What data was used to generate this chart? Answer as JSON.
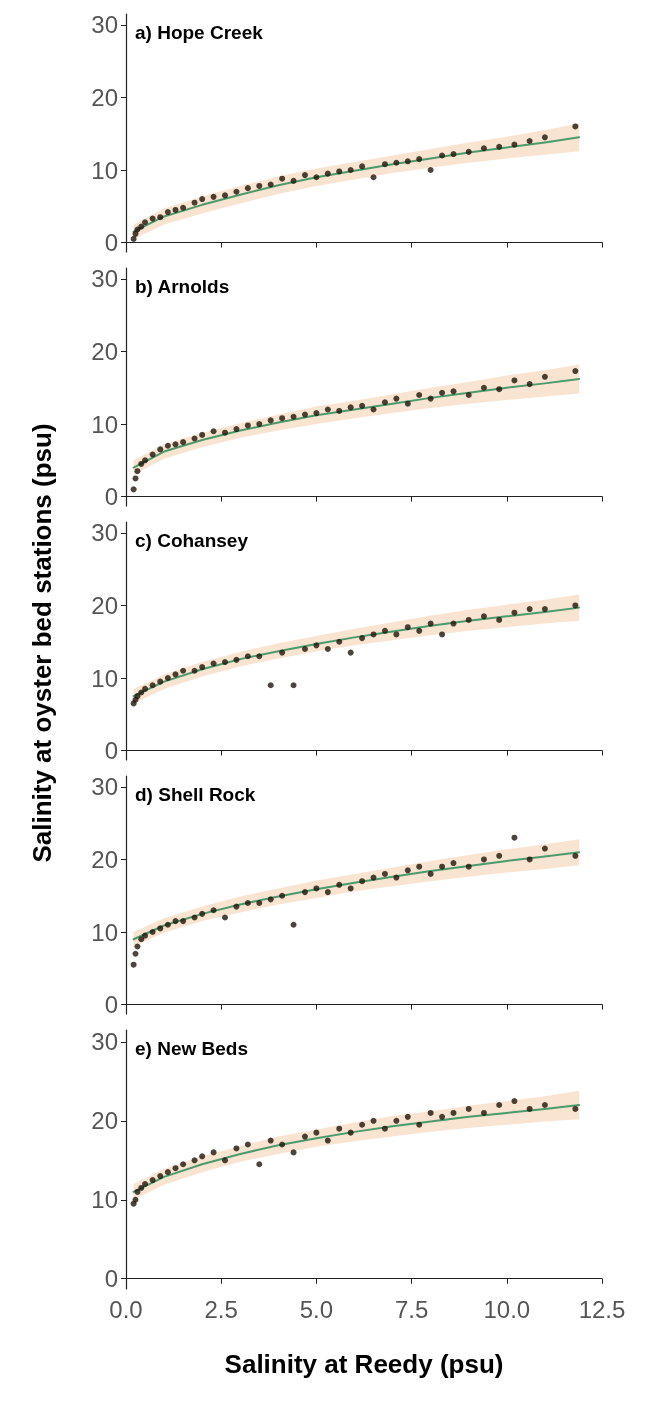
{
  "chart_data": [
    {
      "type": "scatter",
      "title": "a) Hope Creek",
      "xlim": [
        0,
        12.5
      ],
      "xticks": [
        0,
        2.5,
        5,
        7.5,
        10,
        12.5
      ],
      "ylim": [
        -1.3,
        31.5
      ],
      "yticks": [
        0,
        10,
        20,
        30
      ],
      "tick_labels": "y",
      "series": [
        {
          "type": "scatter",
          "marker": "circle",
          "color": "#1f1409",
          "x": [
            0.2,
            0.25,
            0.3,
            0.4,
            0.5,
            0.7,
            0.9,
            1.1,
            1.3,
            1.5,
            1.8,
            2.0,
            2.3,
            2.6,
            2.9,
            3.2,
            3.5,
            3.8,
            4.1,
            4.4,
            4.7,
            5.0,
            5.3,
            5.6,
            5.9,
            6.2,
            6.5,
            6.8,
            7.1,
            7.4,
            7.7,
            8.0,
            8.3,
            8.6,
            9.0,
            9.4,
            9.8,
            10.2,
            10.6,
            11.0,
            11.8
          ],
          "values": [
            0.5,
            1.2,
            1.8,
            2.2,
            2.8,
            3.3,
            3.5,
            4.2,
            4.5,
            4.8,
            5.5,
            6.0,
            6.3,
            6.5,
            7.0,
            7.5,
            7.8,
            8.0,
            8.8,
            8.5,
            9.3,
            9.0,
            9.5,
            9.8,
            10.0,
            10.5,
            9.0,
            10.8,
            11.0,
            11.2,
            11.5,
            10.0,
            12.0,
            12.2,
            12.5,
            13.0,
            13.2,
            13.5,
            14.0,
            14.5,
            16.0
          ]
        },
        {
          "type": "line",
          "marker": "none",
          "color": "#4c9a6c",
          "x": [
            0.2,
            1,
            2,
            3,
            4,
            5,
            6,
            7,
            8,
            9,
            10,
            11,
            11.9
          ],
          "values": [
            1.5,
            3.6,
            5.2,
            6.6,
            7.9,
            9.0,
            9.9,
            10.8,
            11.6,
            12.4,
            13.1,
            13.8,
            14.5
          ],
          "lower": [
            0.5,
            2.5,
            4.0,
            5.4,
            6.7,
            7.8,
            8.7,
            9.6,
            10.3,
            11.0,
            11.6,
            12.1,
            12.6
          ],
          "upper": [
            2.5,
            4.7,
            6.4,
            7.8,
            9.1,
            10.2,
            11.1,
            12.0,
            12.9,
            13.8,
            14.6,
            15.5,
            16.4
          ]
        }
      ]
    },
    {
      "type": "scatter",
      "title": "b) Arnolds",
      "xlim": [
        0,
        12.5
      ],
      "xticks": [
        0,
        2.5,
        5,
        7.5,
        10,
        12.5
      ],
      "ylim": [
        -1.3,
        31.5
      ],
      "yticks": [
        0,
        10,
        20,
        30
      ],
      "tick_labels": "y",
      "series": [
        {
          "type": "scatter",
          "marker": "circle",
          "color": "#1f1409",
          "x": [
            0.2,
            0.25,
            0.3,
            0.4,
            0.5,
            0.7,
            0.9,
            1.1,
            1.3,
            1.5,
            1.8,
            2.0,
            2.3,
            2.6,
            2.9,
            3.2,
            3.5,
            3.8,
            4.1,
            4.4,
            4.7,
            5.0,
            5.3,
            5.6,
            5.9,
            6.2,
            6.5,
            6.8,
            7.1,
            7.4,
            7.7,
            8.0,
            8.3,
            8.6,
            9.0,
            9.4,
            9.8,
            10.2,
            10.6,
            11.0,
            11.8
          ],
          "values": [
            1.0,
            2.5,
            3.5,
            4.5,
            5.0,
            5.8,
            6.5,
            7.0,
            7.2,
            7.5,
            8.0,
            8.5,
            9.0,
            8.8,
            9.3,
            9.8,
            10.0,
            10.5,
            10.8,
            11.0,
            11.3,
            11.5,
            12.0,
            11.8,
            12.3,
            12.5,
            12.0,
            13.0,
            13.5,
            12.8,
            14.0,
            13.5,
            14.3,
            14.5,
            14.0,
            15.0,
            14.8,
            16.0,
            15.5,
            16.5,
            17.3
          ]
        },
        {
          "type": "line",
          "marker": "none",
          "color": "#4c9a6c",
          "x": [
            0.2,
            1,
            2,
            3,
            4,
            5,
            6,
            7,
            8,
            9,
            10,
            11,
            11.9
          ],
          "values": [
            4.0,
            6.2,
            7.8,
            9.1,
            10.2,
            11.2,
            12.0,
            12.8,
            13.6,
            14.3,
            15.0,
            15.6,
            16.2
          ],
          "lower": [
            3.0,
            5.2,
            6.8,
            8.1,
            9.1,
            10.0,
            10.8,
            11.5,
            12.2,
            12.8,
            13.3,
            13.8,
            14.2
          ],
          "upper": [
            5.0,
            7.2,
            8.8,
            10.1,
            11.3,
            12.4,
            13.2,
            14.1,
            15.0,
            15.8,
            16.7,
            17.4,
            18.2
          ]
        }
      ]
    },
    {
      "type": "scatter",
      "title": "c) Cohansey",
      "ylabel": "Salinity at oyster bed stations (psu)",
      "xlim": [
        0,
        12.5
      ],
      "xticks": [
        0,
        2.5,
        5,
        7.5,
        10,
        12.5
      ],
      "ylim": [
        -1.3,
        31.5
      ],
      "yticks": [
        0,
        10,
        20,
        30
      ],
      "tick_labels": "y",
      "series": [
        {
          "type": "scatter",
          "marker": "circle",
          "color": "#1f1409",
          "x": [
            0.2,
            0.25,
            0.3,
            0.4,
            0.5,
            0.7,
            0.9,
            1.1,
            1.3,
            1.5,
            1.8,
            2.0,
            2.3,
            2.6,
            2.9,
            3.2,
            3.5,
            3.8,
            4.1,
            4.4,
            4.7,
            5.0,
            5.3,
            5.6,
            5.9,
            6.2,
            6.5,
            6.8,
            7.1,
            7.4,
            7.7,
            8.0,
            8.3,
            8.6,
            9.0,
            9.4,
            9.8,
            10.2,
            10.6,
            11.0,
            11.8
          ],
          "values": [
            6.5,
            7.0,
            7.5,
            8.0,
            8.5,
            9.0,
            9.5,
            10.0,
            10.5,
            11.0,
            11.0,
            11.5,
            12.0,
            12.2,
            12.5,
            13.0,
            13.0,
            9.0,
            13.5,
            9.0,
            14.0,
            14.5,
            14.0,
            15.0,
            13.5,
            15.5,
            16.0,
            16.5,
            16.0,
            17.0,
            16.5,
            17.5,
            16.0,
            17.5,
            18.0,
            18.5,
            18.0,
            19.0,
            19.5,
            19.5,
            20.0
          ]
        },
        {
          "type": "line",
          "marker": "none",
          "color": "#4c9a6c",
          "x": [
            0.2,
            1,
            2,
            3,
            4,
            5,
            6,
            7,
            8,
            9,
            10,
            11,
            11.9
          ],
          "values": [
            7.5,
            9.5,
            11.2,
            12.6,
            13.7,
            14.7,
            15.6,
            16.4,
            17.2,
            17.9,
            18.5,
            19.1,
            19.7
          ],
          "lower": [
            6.5,
            8.5,
            10.2,
            11.6,
            12.7,
            13.7,
            14.5,
            15.2,
            15.9,
            16.5,
            17.0,
            17.5,
            17.9
          ],
          "upper": [
            8.5,
            10.5,
            12.2,
            13.6,
            14.8,
            15.8,
            16.8,
            17.7,
            18.6,
            19.4,
            20.1,
            20.8,
            21.5
          ]
        }
      ]
    },
    {
      "type": "scatter",
      "title": "d) Shell Rock",
      "xlim": [
        0,
        12.5
      ],
      "xticks": [
        0,
        2.5,
        5,
        7.5,
        10,
        12.5
      ],
      "ylim": [
        -1.3,
        31.5
      ],
      "yticks": [
        0,
        10,
        20,
        30
      ],
      "tick_labels": "y",
      "series": [
        {
          "type": "scatter",
          "marker": "circle",
          "color": "#1f1409",
          "x": [
            0.2,
            0.25,
            0.3,
            0.4,
            0.5,
            0.7,
            0.9,
            1.1,
            1.3,
            1.5,
            1.8,
            2.0,
            2.3,
            2.6,
            2.9,
            3.2,
            3.5,
            3.8,
            4.1,
            4.4,
            4.7,
            5.0,
            5.3,
            5.6,
            5.9,
            6.2,
            6.5,
            6.8,
            7.1,
            7.4,
            7.7,
            8.0,
            8.3,
            8.6,
            9.0,
            9.4,
            9.8,
            10.2,
            10.6,
            11.0,
            11.8
          ],
          "values": [
            5.5,
            7.0,
            8.0,
            9.0,
            9.5,
            10.0,
            10.5,
            11.0,
            11.5,
            11.5,
            12.0,
            12.5,
            13.0,
            12.0,
            13.5,
            14.0,
            14.0,
            14.5,
            15.0,
            11.0,
            15.5,
            16.0,
            15.5,
            16.5,
            16.0,
            17.0,
            17.5,
            18.0,
            17.5,
            18.5,
            19.0,
            18.0,
            19.0,
            19.5,
            19.0,
            20.0,
            20.5,
            23.0,
            20.0,
            21.5,
            20.5
          ]
        },
        {
          "type": "line",
          "marker": "none",
          "color": "#4c9a6c",
          "x": [
            0.2,
            1,
            2,
            3,
            4,
            5,
            6,
            7,
            8,
            9,
            10,
            11,
            11.9
          ],
          "values": [
            9.0,
            10.9,
            12.5,
            13.8,
            14.9,
            15.9,
            16.8,
            17.6,
            18.4,
            19.1,
            19.8,
            20.4,
            21.0
          ],
          "lower": [
            8.0,
            9.9,
            11.5,
            12.7,
            13.8,
            14.7,
            15.6,
            16.3,
            17.0,
            17.6,
            18.2,
            18.7,
            19.2
          ],
          "upper": [
            10.0,
            11.9,
            13.5,
            14.9,
            16.0,
            17.1,
            18.0,
            18.9,
            19.8,
            20.6,
            21.4,
            22.1,
            22.8
          ]
        }
      ]
    },
    {
      "type": "scatter",
      "title": "e) New Beds",
      "xlabel": "Salinity at Reedy (psu)",
      "xlim": [
        0,
        12.5
      ],
      "xticks": [
        {
          "value": 0,
          "label": "0.0"
        },
        2.5,
        {
          "value": 5,
          "label": "5.0"
        },
        7.5,
        {
          "value": 10,
          "label": "10.0"
        },
        12.5
      ],
      "ylim": [
        -1.3,
        31.5
      ],
      "yticks": [
        0,
        10,
        20,
        30
      ],
      "grid": false,
      "series": [
        {
          "type": "scatter",
          "marker": "circle",
          "color": "#1f1409",
          "x": [
            0.2,
            0.25,
            0.3,
            0.4,
            0.5,
            0.7,
            0.9,
            1.1,
            1.3,
            1.5,
            1.8,
            2.0,
            2.3,
            2.6,
            2.9,
            3.2,
            3.5,
            3.8,
            4.1,
            4.4,
            4.7,
            5.0,
            5.3,
            5.6,
            5.9,
            6.2,
            6.5,
            6.8,
            7.1,
            7.4,
            7.7,
            8.0,
            8.3,
            8.6,
            9.0,
            9.4,
            9.8,
            10.2,
            10.6,
            11.0,
            11.8
          ],
          "values": [
            9.5,
            10.0,
            11.0,
            11.5,
            12.0,
            12.5,
            13.0,
            13.5,
            14.0,
            14.5,
            15.0,
            15.5,
            16.0,
            15.0,
            16.5,
            17.0,
            14.5,
            17.5,
            17.0,
            16.0,
            18.0,
            18.5,
            17.5,
            19.0,
            18.5,
            19.5,
            20.0,
            19.0,
            20.0,
            20.5,
            19.5,
            21.0,
            20.5,
            21.0,
            21.5,
            21.0,
            22.0,
            22.5,
            21.5,
            22.0,
            21.5
          ]
        },
        {
          "type": "line",
          "marker": "none",
          "color": "#4c9a6c",
          "x": [
            0.2,
            1,
            2,
            3,
            4,
            5,
            6,
            7,
            8,
            9,
            10,
            11,
            11.9
          ],
          "values": [
            11.0,
            12.9,
            14.5,
            15.8,
            16.9,
            17.8,
            18.6,
            19.3,
            19.9,
            20.5,
            21.0,
            21.5,
            22.0
          ],
          "lower": [
            10.0,
            11.9,
            13.5,
            14.8,
            15.8,
            16.7,
            17.4,
            18.0,
            18.6,
            19.1,
            19.5,
            19.9,
            20.2
          ],
          "upper": [
            12.0,
            13.9,
            15.5,
            16.8,
            18.0,
            18.9,
            19.8,
            20.6,
            21.2,
            21.9,
            22.5,
            23.1,
            23.8
          ]
        }
      ]
    }
  ]
}
